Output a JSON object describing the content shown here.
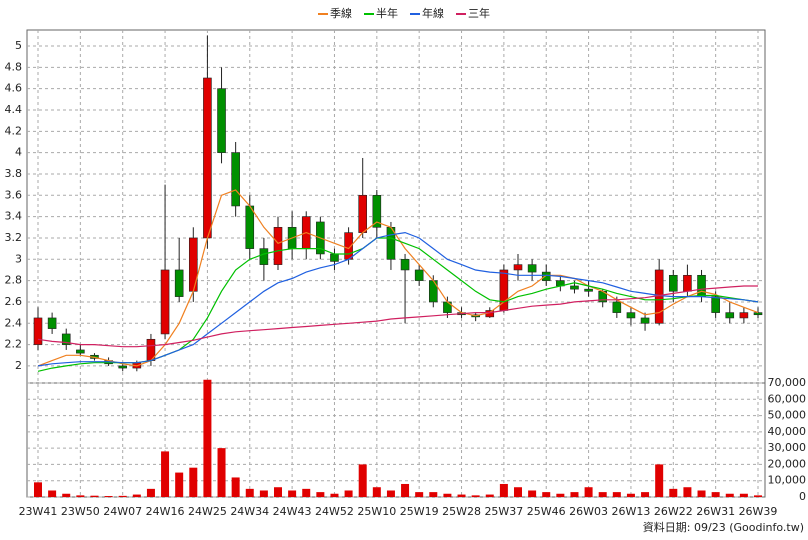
{
  "chart_data": {
    "type": "candlestick",
    "categories": [
      "23W41",
      null,
      null,
      "23W50",
      null,
      null,
      "24W07",
      null,
      null,
      "24W16",
      null,
      null,
      "24W25",
      null,
      null,
      "24W34",
      null,
      null,
      "24W43",
      null,
      null,
      "24W52",
      null,
      null,
      "25W10",
      null,
      null,
      "25W19",
      null,
      null,
      "25W28",
      null,
      null,
      "25W37",
      null,
      null,
      "25W46",
      null,
      null,
      "26W03",
      null,
      null,
      "26W13",
      null,
      null,
      "26W22",
      null,
      null,
      "26W31",
      null,
      null,
      "26W39"
    ],
    "open": [
      2.2,
      2.45,
      2.3,
      2.15,
      2.1,
      2.05,
      2.0,
      1.98,
      2.05,
      2.3,
      2.9,
      2.7,
      3.2,
      4.6,
      4.0,
      3.5,
      3.1,
      2.95,
      3.3,
      3.1,
      3.35,
      3.05,
      3.0,
      3.25,
      3.6,
      3.3,
      3.0,
      2.9,
      2.8,
      2.6,
      2.5,
      2.48,
      2.46,
      2.52,
      2.9,
      2.95,
      2.88,
      2.8,
      2.75,
      2.72,
      2.7,
      2.6,
      2.5,
      2.45,
      2.4,
      2.85,
      2.7,
      2.85,
      2.65,
      2.5,
      2.45,
      2.5
    ],
    "high": [
      2.55,
      2.5,
      2.35,
      2.2,
      2.12,
      2.08,
      2.02,
      2.05,
      2.3,
      3.7,
      3.2,
      3.3,
      5.1,
      4.8,
      4.1,
      3.6,
      3.2,
      3.4,
      3.45,
      3.45,
      3.4,
      3.1,
      3.3,
      3.95,
      3.65,
      3.35,
      3.05,
      2.95,
      2.85,
      2.65,
      2.55,
      2.5,
      2.55,
      2.95,
      3.05,
      3.0,
      2.95,
      2.85,
      2.8,
      2.8,
      2.72,
      2.65,
      2.55,
      2.5,
      3.0,
      2.9,
      2.95,
      2.9,
      2.7,
      2.6,
      2.55,
      2.55
    ],
    "low": [
      2.15,
      2.3,
      2.15,
      2.1,
      2.05,
      2.0,
      1.95,
      1.95,
      2.0,
      2.25,
      2.6,
      2.6,
      3.1,
      3.9,
      3.4,
      3.0,
      2.8,
      2.9,
      3.0,
      3.0,
      3.0,
      2.9,
      2.95,
      3.2,
      3.2,
      2.9,
      2.4,
      2.75,
      2.55,
      2.45,
      2.45,
      2.42,
      2.45,
      2.5,
      2.8,
      2.8,
      2.75,
      2.7,
      2.68,
      2.65,
      2.55,
      2.45,
      2.38,
      2.33,
      2.38,
      2.6,
      2.65,
      2.6,
      2.45,
      2.4,
      2.4,
      2.45
    ],
    "close": [
      2.45,
      2.35,
      2.2,
      2.12,
      2.07,
      2.02,
      1.98,
      2.03,
      2.25,
      2.9,
      2.65,
      3.2,
      4.7,
      4.0,
      3.5,
      3.1,
      2.95,
      3.3,
      3.1,
      3.4,
      3.05,
      2.98,
      3.25,
      3.6,
      3.3,
      3.0,
      2.9,
      2.8,
      2.6,
      2.5,
      2.48,
      2.46,
      2.52,
      2.9,
      2.95,
      2.88,
      2.8,
      2.75,
      2.72,
      2.7,
      2.6,
      2.5,
      2.45,
      2.4,
      2.9,
      2.7,
      2.85,
      2.65,
      2.5,
      2.45,
      2.5,
      2.48
    ],
    "volume": [
      9000,
      4000,
      2000,
      1000,
      800,
      600,
      700,
      1500,
      5000,
      28000,
      15000,
      18000,
      72000,
      30000,
      12000,
      5000,
      4000,
      6000,
      4000,
      5000,
      3000,
      2000,
      4000,
      20000,
      6000,
      4000,
      8000,
      3000,
      3000,
      2000,
      1500,
      1000,
      1500,
      8000,
      6000,
      4000,
      3000,
      2000,
      3000,
      6000,
      3000,
      3000,
      2000,
      3000,
      20000,
      5000,
      6000,
      4000,
      3000,
      2000,
      2000,
      1000
    ],
    "up_color": "#e00000",
    "down_color": "#009000",
    "volume_color": "#e00000",
    "lines": [
      {
        "name": "季線",
        "color": "#f08020",
        "values": [
          2.0,
          2.05,
          2.1,
          2.1,
          2.08,
          2.05,
          2.02,
          2.0,
          2.05,
          2.2,
          2.4,
          2.7,
          3.2,
          3.6,
          3.65,
          3.5,
          3.3,
          3.15,
          3.2,
          3.25,
          3.2,
          3.15,
          3.1,
          3.25,
          3.35,
          3.3,
          3.1,
          2.95,
          2.8,
          2.6,
          2.5,
          2.47,
          2.5,
          2.6,
          2.7,
          2.75,
          2.85,
          2.85,
          2.82,
          2.75,
          2.7,
          2.62,
          2.55,
          2.48,
          2.5,
          2.58,
          2.65,
          2.7,
          2.67,
          2.6,
          2.55,
          2.5
        ]
      },
      {
        "name": "半年",
        "color": "#00c000",
        "values": [
          1.95,
          1.98,
          2.0,
          2.02,
          2.03,
          2.03,
          2.03,
          2.03,
          2.05,
          2.1,
          2.15,
          2.25,
          2.45,
          2.7,
          2.9,
          3.0,
          3.05,
          3.08,
          3.1,
          3.1,
          3.1,
          3.05,
          3.05,
          3.1,
          3.2,
          3.2,
          3.15,
          3.1,
          3.0,
          2.9,
          2.8,
          2.7,
          2.62,
          2.6,
          2.65,
          2.68,
          2.72,
          2.75,
          2.78,
          2.75,
          2.72,
          2.68,
          2.65,
          2.62,
          2.62,
          2.63,
          2.65,
          2.66,
          2.66,
          2.64,
          2.62,
          2.6
        ]
      },
      {
        "name": "年線",
        "color": "#2060e0",
        "values": [
          2.0,
          2.02,
          2.03,
          2.04,
          2.04,
          2.04,
          2.03,
          2.03,
          2.05,
          2.1,
          2.15,
          2.2,
          2.3,
          2.4,
          2.5,
          2.6,
          2.7,
          2.78,
          2.82,
          2.88,
          2.92,
          2.95,
          3.0,
          3.1,
          3.2,
          3.23,
          3.25,
          3.2,
          3.1,
          3.0,
          2.95,
          2.9,
          2.88,
          2.87,
          2.85,
          2.85,
          2.85,
          2.84,
          2.82,
          2.8,
          2.78,
          2.74,
          2.7,
          2.68,
          2.66,
          2.65,
          2.65,
          2.65,
          2.64,
          2.63,
          2.62,
          2.6
        ]
      },
      {
        "name": "三年",
        "color": "#d02060",
        "values": [
          2.25,
          2.23,
          2.22,
          2.2,
          2.2,
          2.19,
          2.18,
          2.18,
          2.19,
          2.2,
          2.22,
          2.24,
          2.27,
          2.3,
          2.32,
          2.33,
          2.34,
          2.35,
          2.36,
          2.37,
          2.38,
          2.39,
          2.4,
          2.41,
          2.42,
          2.44,
          2.45,
          2.46,
          2.47,
          2.48,
          2.49,
          2.5,
          2.5,
          2.52,
          2.54,
          2.56,
          2.57,
          2.58,
          2.6,
          2.61,
          2.62,
          2.62,
          2.63,
          2.64,
          2.66,
          2.68,
          2.7,
          2.72,
          2.73,
          2.74,
          2.75,
          2.75
        ]
      }
    ],
    "ylim": [
      1.84,
      5.15
    ],
    "yticks": [
      2,
      2.2,
      2.4,
      2.6,
      2.8,
      3,
      3.2,
      3.4,
      3.6,
      3.8,
      4,
      4.2,
      4.4,
      4.6,
      4.8,
      5
    ],
    "y2lim": [
      0,
      70000
    ],
    "y2ticks": [
      0,
      {
        "value": 10000,
        "label": "10,000"
      },
      {
        "value": 20000,
        "label": "20,000"
      },
      {
        "value": 30000,
        "label": "30,000"
      },
      {
        "value": 40000,
        "label": "40,000"
      },
      {
        "value": 50000,
        "label": "50,000"
      },
      {
        "value": 60000,
        "label": "60,000"
      },
      {
        "value": 70000,
        "label": "70,000"
      }
    ],
    "grid": true,
    "legend": "top",
    "footnote": "資料日期: 09/23 (Goodinfo.tw)"
  }
}
